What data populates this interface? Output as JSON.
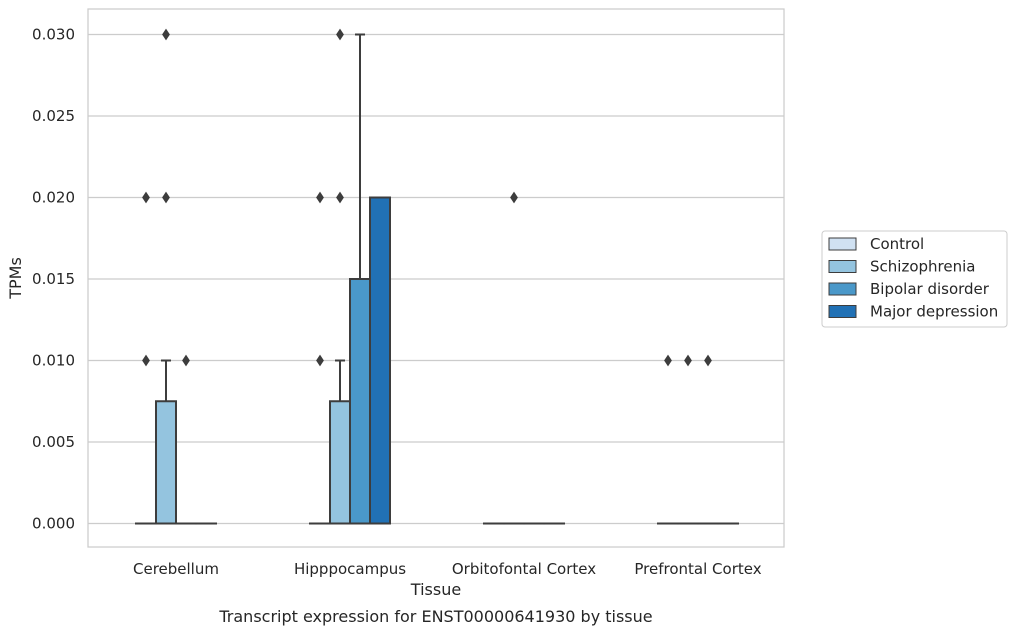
{
  "chart_data": {
    "type": "box",
    "title": "Transcript expression for ENST00000641930 by tissue",
    "xlabel": "Tissue",
    "ylabel": "TPMs",
    "ylim": [
      -0.0015,
      0.0305
    ],
    "yticks": [
      0.0,
      0.005,
      0.01,
      0.015,
      0.02,
      0.025,
      0.03
    ],
    "ytick_labels": [
      "0.000",
      "0.005",
      "0.010",
      "0.015",
      "0.020",
      "0.025",
      "0.030"
    ],
    "grid": "horizontal",
    "legend_position": "right",
    "categories": [
      "Cerebellum",
      "Hipppocampus",
      "Orbitofontal Cortex",
      "Prefrontal Cortex"
    ],
    "series": [
      {
        "name": "Control",
        "color": "#d0e1f2",
        "boxes": [
          {
            "q1": 0.0,
            "median": 0.0,
            "q3": 0.0,
            "whisker_low": 0.0,
            "whisker_high": 0.0,
            "outliers": [
              0.01,
              0.02
            ]
          },
          {
            "q1": 0.0,
            "median": 0.0,
            "q3": 0.0,
            "whisker_low": 0.0,
            "whisker_high": 0.0,
            "outliers": [
              0.01,
              0.02
            ]
          },
          {
            "q1": 0.0,
            "median": 0.0,
            "q3": 0.0,
            "whisker_low": 0.0,
            "whisker_high": 0.0,
            "outliers": []
          },
          {
            "q1": 0.0,
            "median": 0.0,
            "q3": 0.0,
            "whisker_low": 0.0,
            "whisker_high": 0.0,
            "outliers": [
              0.01
            ]
          }
        ]
      },
      {
        "name": "Schizophrenia",
        "color": "#94c4df",
        "boxes": [
          {
            "q1": 0.0,
            "median": 0.0,
            "q3": 0.0075,
            "whisker_low": 0.0,
            "whisker_high": 0.01,
            "outliers": [
              0.02,
              0.03
            ]
          },
          {
            "q1": 0.0,
            "median": 0.0,
            "q3": 0.0075,
            "whisker_low": 0.0,
            "whisker_high": 0.01,
            "outliers": [
              0.02,
              0.03
            ]
          },
          {
            "q1": 0.0,
            "median": 0.0,
            "q3": 0.0,
            "whisker_low": 0.0,
            "whisker_high": 0.0,
            "outliers": [
              0.02
            ]
          },
          {
            "q1": 0.0,
            "median": 0.0,
            "q3": 0.0,
            "whisker_low": 0.0,
            "whisker_high": 0.0,
            "outliers": [
              0.01
            ]
          }
        ]
      },
      {
        "name": "Bipolar disorder",
        "color": "#4a98c9",
        "boxes": [
          {
            "q1": 0.0,
            "median": 0.0,
            "q3": 0.0,
            "whisker_low": 0.0,
            "whisker_high": 0.0,
            "outliers": [
              0.01
            ]
          },
          {
            "q1": 0.0,
            "median": 0.0,
            "q3": 0.015,
            "whisker_low": 0.0,
            "whisker_high": 0.03,
            "outliers": []
          },
          {
            "q1": 0.0,
            "median": 0.0,
            "q3": 0.0,
            "whisker_low": 0.0,
            "whisker_high": 0.0,
            "outliers": []
          },
          {
            "q1": 0.0,
            "median": 0.0,
            "q3": 0.0,
            "whisker_low": 0.0,
            "whisker_high": 0.0,
            "outliers": [
              0.01
            ]
          }
        ]
      },
      {
        "name": "Major depression",
        "color": "#2171b5",
        "boxes": [
          {
            "q1": 0.0,
            "median": 0.0,
            "q3": 0.0,
            "whisker_low": 0.0,
            "whisker_high": 0.0,
            "outliers": []
          },
          {
            "q1": 0.0,
            "median": 0.0,
            "q3": 0.02,
            "whisker_low": 0.0,
            "whisker_high": 0.02,
            "outliers": []
          },
          {
            "q1": 0.0,
            "median": 0.0,
            "q3": 0.0,
            "whisker_low": 0.0,
            "whisker_high": 0.0,
            "outliers": []
          },
          {
            "q1": 0.0,
            "median": 0.0,
            "q3": 0.0,
            "whisker_low": 0.0,
            "whisker_high": 0.0,
            "outliers": []
          }
        ]
      }
    ]
  }
}
